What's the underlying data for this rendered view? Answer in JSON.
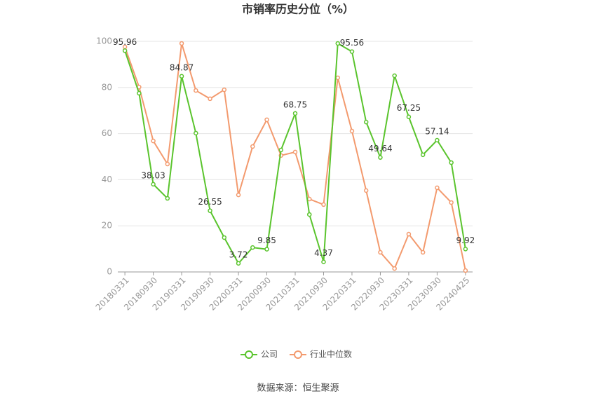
{
  "chart_data": {
    "type": "line",
    "title": "市销率历史分位（%）",
    "categories": [
      "20180331",
      null,
      "20180930",
      null,
      "20190331",
      null,
      "20190930",
      null,
      "20200331",
      null,
      "20200930",
      null,
      "20210331",
      null,
      "20210930",
      null,
      "20220331",
      null,
      "20220930",
      null,
      "20230331",
      null,
      "20230930",
      null,
      "20240425"
    ],
    "series": [
      {
        "name": "公司",
        "color": "#5ac42d",
        "values": [
          95.96,
          77.5,
          38.03,
          31.9,
          84.87,
          60.2,
          26.55,
          14.9,
          3.72,
          10.6,
          9.85,
          52.9,
          68.75,
          24.9,
          4.37,
          99.1,
          95.56,
          65.0,
          49.64,
          85.1,
          67.25,
          50.8,
          57.14,
          47.4,
          9.92
        ]
      },
      {
        "name": "行业中位数",
        "color": "#f39a6e",
        "values": [
          97.6,
          80.2,
          56.8,
          46.8,
          99.1,
          78.7,
          75.1,
          79.0,
          33.4,
          54.4,
          66.0,
          50.5,
          52.0,
          31.6,
          29.2,
          84.2,
          61.1,
          35.3,
          8.5,
          1.5,
          16.4,
          8.5,
          36.5,
          30.1,
          0.6
        ]
      }
    ],
    "ylim": [
      0,
      100
    ],
    "yticks": [
      0,
      20,
      40,
      60,
      80,
      100
    ],
    "grid": true,
    "legend": "bottom",
    "source": "数据来源：恒生聚源"
  }
}
